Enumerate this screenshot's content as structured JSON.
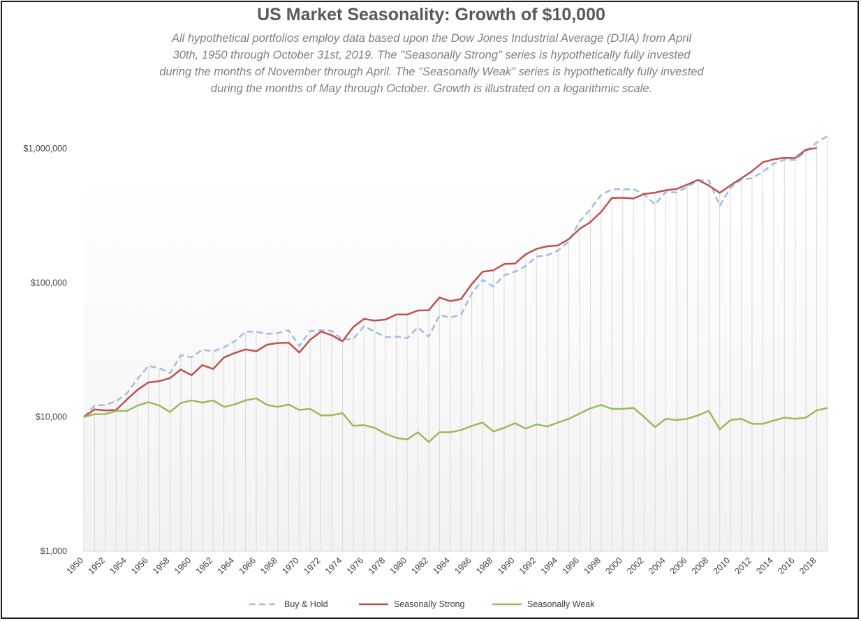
{
  "chart_data": {
    "type": "line",
    "title": "US Market Seasonality:  Growth of $10,000",
    "subtitle_lines": [
      "All hypothetical portfolios employ data based upon the Dow Jones Industrial Average (DJIA) from April",
      "30th, 1950 through October 31st, 2019. The \"Seasonally Strong\" series is hypothetically fully invested",
      "during the months of November through April. The \"Seasonally Weak\" series is hypothetically fully invested",
      "during the months of May through October. Growth is illustrated on a logarithmic scale."
    ],
    "y_scale": "log",
    "ylim": [
      1000,
      1000000
    ],
    "y_ticks": [
      1000,
      10000,
      100000,
      1000000
    ],
    "y_tick_labels": [
      "$1,000",
      "$10,000",
      "$100,000",
      "$1,000,000"
    ],
    "x_tick_labels": [
      "1950",
      "1952",
      "1954",
      "1956",
      "1958",
      "1960",
      "1962",
      "1964",
      "1966",
      "1968",
      "1970",
      "1972",
      "1974",
      "1976",
      "1978",
      "1980",
      "1982",
      "1984",
      "1986",
      "1988",
      "1990",
      "1992",
      "1994",
      "1996",
      "1998",
      "2000",
      "2002",
      "2004",
      "2006",
      "2008",
      "2010",
      "2012",
      "2014",
      "2016",
      "2018"
    ],
    "x": [
      1950,
      1951,
      1952,
      1953,
      1954,
      1955,
      1956,
      1957,
      1958,
      1959,
      1960,
      1961,
      1962,
      1963,
      1964,
      1965,
      1966,
      1967,
      1968,
      1969,
      1970,
      1971,
      1972,
      1973,
      1974,
      1975,
      1976,
      1977,
      1978,
      1979,
      1980,
      1981,
      1982,
      1983,
      1984,
      1985,
      1986,
      1987,
      1988,
      1989,
      1990,
      1991,
      1992,
      1993,
      1994,
      1995,
      1996,
      1997,
      1998,
      1999,
      2000,
      2001,
      2002,
      2003,
      2004,
      2005,
      2006,
      2007,
      2008,
      2009,
      2010,
      2011,
      2012,
      2013,
      2014,
      2015,
      2016,
      2017,
      2018,
      2019
    ],
    "grid": "vertical lines at each year",
    "legend_position": "bottom",
    "series": [
      {
        "name": "Buy & Hold",
        "color": "#a3bde0",
        "dash": "dashed",
        "values": [
          10000,
          12200,
          12300,
          13100,
          15000,
          19300,
          24000,
          23200,
          21200,
          28900,
          27900,
          31800,
          30800,
          33100,
          36600,
          43200,
          43200,
          41700,
          42200,
          44300,
          33800,
          43800,
          44400,
          43800,
          37800,
          38100,
          47500,
          43200,
          39400,
          39800,
          38700,
          46500,
          39700,
          57300,
          55300,
          57800,
          83600,
          105200,
          93800,
          113600,
          121000,
          133200,
          156500,
          161000,
          174000,
          204800,
          286300,
          352800,
          453000,
          495800,
          498200,
          497400,
          457300,
          383300,
          476700,
          471400,
          519000,
          578800,
          580700,
          375600,
          509000,
          588700,
          601000,
          673000,
          772000,
          828000,
          823000,
          954000,
          1110000,
          1240000
        ]
      },
      {
        "name": "Seasonally Strong",
        "color": "#c0504d",
        "dash": "solid",
        "values": [
          10000,
          11400,
          11200,
          11300,
          13500,
          16000,
          18100,
          18500,
          19500,
          22600,
          20500,
          24400,
          22800,
          27800,
          30000,
          31900,
          30900,
          34600,
          35600,
          35800,
          30200,
          37600,
          43300,
          40700,
          36700,
          46900,
          53900,
          52300,
          53300,
          58000,
          58000,
          62200,
          62400,
          77700,
          73000,
          75700,
          98000,
          121000,
          124000,
          138000,
          139000,
          163000,
          179000,
          187000,
          190000,
          212000,
          252000,
          283000,
          338000,
          429000,
          430000,
          425000,
          460000,
          470000,
          490000,
          500000,
          540000,
          585000,
          530000,
          468000,
          533000,
          600000,
          679000,
          793000,
          832000,
          855000,
          851000,
          982000,
          1010000,
          null
        ]
      },
      {
        "name": "Seasonally Weak",
        "color": "#9bbb59",
        "dash": "solid",
        "values": [
          10000,
          10500,
          10500,
          11100,
          11100,
          12200,
          12900,
          12200,
          10900,
          12700,
          13300,
          12800,
          13300,
          11900,
          12400,
          13300,
          13800,
          12300,
          11900,
          12400,
          11300,
          11500,
          10300,
          10300,
          10700,
          8600,
          8700,
          8300,
          7500,
          7000,
          6800,
          7700,
          6500,
          7700,
          7700,
          8000,
          8600,
          9100,
          7800,
          8300,
          9000,
          8200,
          8800,
          8500,
          9100,
          9700,
          10600,
          11600,
          12300,
          11500,
          11500,
          11700,
          10000,
          8400,
          9700,
          9500,
          9700,
          10300,
          11100,
          8100,
          9500,
          9700,
          8900,
          8900,
          9400,
          9900,
          9700,
          9900,
          11200,
          11700
        ]
      }
    ]
  }
}
